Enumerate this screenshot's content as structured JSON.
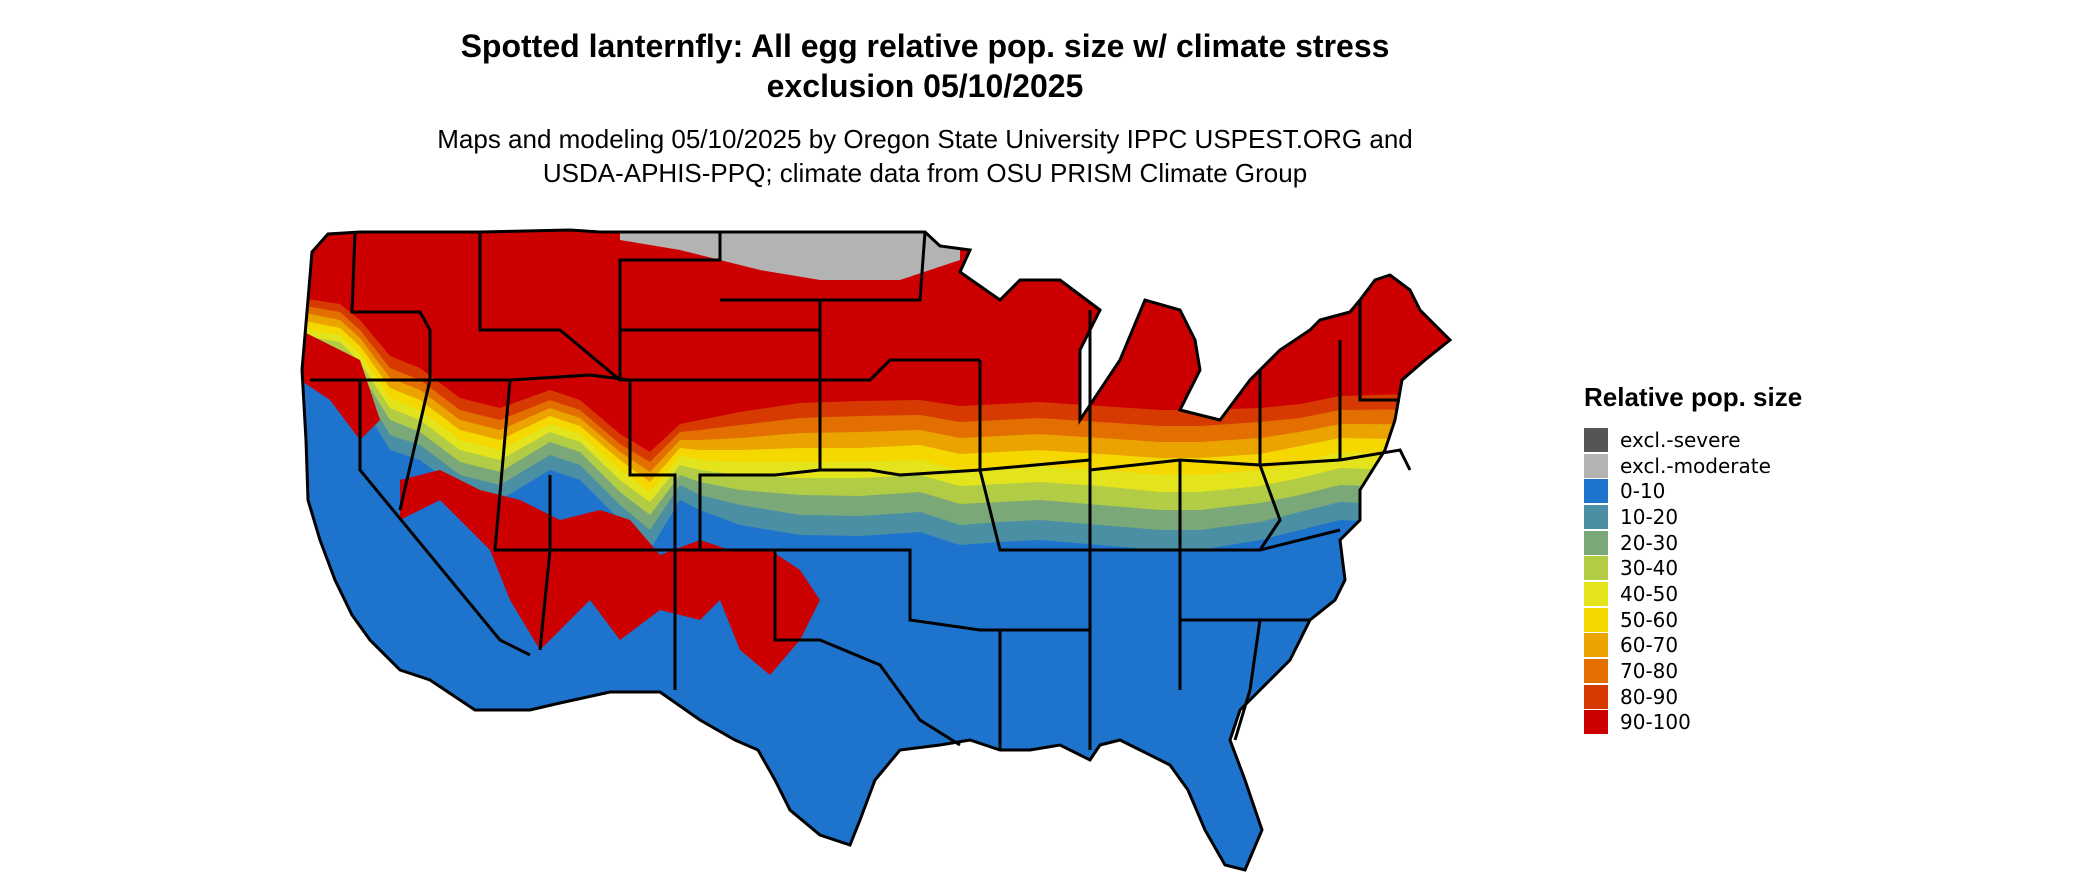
{
  "title": {
    "line1": "Spotted lanternfly: All egg relative pop. size w/ climate stress",
    "line2": "exclusion 05/10/2025"
  },
  "subtitle": {
    "line1": "Maps and modeling 05/10/2025 by Oregon State University IPPC USPEST.ORG and",
    "line2": "USDA-APHIS-PPQ; climate data from OSU PRISM Climate Group"
  },
  "legend": {
    "title": "Relative pop. size",
    "items": [
      {
        "label": "excl.-severe",
        "color": "#555555"
      },
      {
        "label": "excl.-moderate",
        "color": "#b3b3b3"
      },
      {
        "label": "0-10",
        "color": "#1e74cc"
      },
      {
        "label": "10-20",
        "color": "#4a8fa3"
      },
      {
        "label": "20-30",
        "color": "#7aa878"
      },
      {
        "label": "30-40",
        "color": "#b2cc45"
      },
      {
        "label": "40-50",
        "color": "#e4e41c"
      },
      {
        "label": "50-60",
        "color": "#f5d800"
      },
      {
        "label": "60-70",
        "color": "#eba300"
      },
      {
        "label": "70-80",
        "color": "#e26f00"
      },
      {
        "label": "80-90",
        "color": "#d63a00"
      },
      {
        "label": "90-100",
        "color": "#cc0000"
      }
    ]
  }
}
